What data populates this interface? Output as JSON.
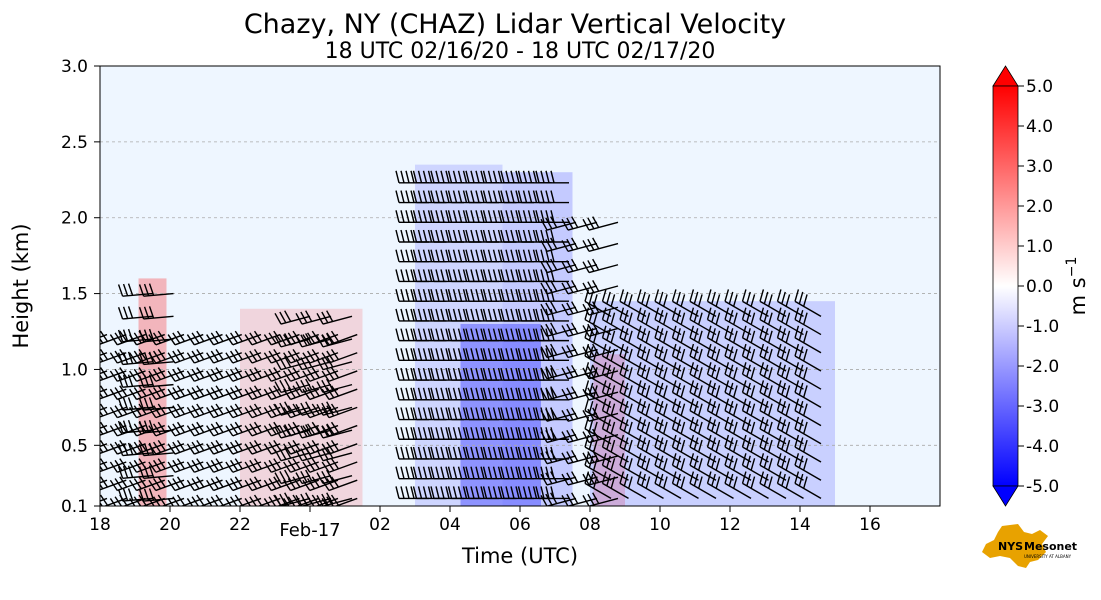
{
  "chart_data": {
    "type": "heatmap",
    "title": "Chazy, NY (CHAZ) Lidar Vertical Velocity",
    "subtitle": "18 UTC 02/16/20 - 18 UTC 02/17/20",
    "xlabel": "Time (UTC)",
    "ylabel": "Height (km)",
    "x_tick_labels": [
      "18",
      "20",
      "22",
      "Feb-17",
      "02",
      "04",
      "06",
      "08",
      "10",
      "12",
      "14",
      "16"
    ],
    "xlim_hours_utc_from_18z": [
      0,
      24
    ],
    "y_ticks": [
      0.1,
      0.5,
      1.0,
      1.5,
      2.0,
      2.5,
      3.0
    ],
    "y_tick_labels": [
      "0.1",
      "0.5",
      "1.0",
      "1.5",
      "2.0",
      "2.5",
      "3.0"
    ],
    "ylim": [
      0.1,
      3.0
    ],
    "grid": "horizontal dashed",
    "background_color": "#eef6ff",
    "colorbar": {
      "label": "m s",
      "label_superscript": "−1",
      "range": [
        -5.0,
        5.0
      ],
      "tick_labels": [
        "5.0",
        "4.0",
        "3.0",
        "2.0",
        "1.0",
        "0.0",
        "-1.0",
        "-2.0",
        "-3.0",
        "-4.0",
        "-5.0"
      ],
      "tick_values": [
        5,
        4,
        3,
        2,
        1,
        0,
        -1,
        -2,
        -3,
        -4,
        -5
      ],
      "colors": {
        "positive": "#ff0000",
        "zero": "#ffffff",
        "negative": "#0000ff"
      },
      "extend": "both"
    },
    "velocity_regions": [
      {
        "t0": 1.1,
        "t1": 1.9,
        "h0": 0.1,
        "h1": 1.6,
        "w": 0.6
      },
      {
        "t0": 4.0,
        "t1": 7.5,
        "h0": 0.1,
        "h1": 1.4,
        "w": 0.3
      },
      {
        "t0": 9.0,
        "t1": 11.5,
        "h0": 0.1,
        "h1": 2.35,
        "w": -0.3
      },
      {
        "t0": 10.3,
        "t1": 12.6,
        "h0": 0.1,
        "h1": 1.3,
        "w": -0.7
      },
      {
        "t0": 11.5,
        "t1": 13.5,
        "h0": 0.1,
        "h1": 2.3,
        "w": -0.4
      },
      {
        "t0": 14.1,
        "t1": 15.0,
        "h0": 0.1,
        "h1": 1.1,
        "w": 0.4
      },
      {
        "t0": 14.0,
        "t1": 21.0,
        "h0": 0.1,
        "h1": 1.45,
        "w": -0.35
      }
    ],
    "wind_barbs": [
      {
        "t0": 0.2,
        "t1": 7.8,
        "dt": 0.55,
        "hmax": 1.25,
        "dh": 0.12,
        "dir": 250,
        "flags": 3
      },
      {
        "t0": 1.5,
        "t1": 2.5,
        "dt": 0.6,
        "hmax": 1.6,
        "dh": 0.15,
        "dir": 265,
        "flags": 3
      },
      {
        "t0": 6.0,
        "t1": 7.5,
        "dt": 0.6,
        "hmax": 1.45,
        "dh": 0.15,
        "dir": 255,
        "flags": 3
      },
      {
        "t0": 9.4,
        "t1": 13.4,
        "dt": 0.5,
        "hmax": 2.35,
        "dh": 0.13,
        "dir": 270,
        "flags": 4
      },
      {
        "t0": 13.6,
        "t1": 15.0,
        "dt": 0.6,
        "hmax": 2.1,
        "dh": 0.14,
        "dir": 255,
        "flags": 3
      },
      {
        "t0": 14.6,
        "t1": 21.0,
        "dt": 0.5,
        "hmax": 1.35,
        "dh": 0.12,
        "dir": 300,
        "flags": 3
      }
    ]
  },
  "logo": {
    "text_nys": "NYS",
    "text_mesonet": "Mesonet",
    "text_sub": "UNIVERSITY AT ALBANY",
    "color_state": "#e8a200",
    "color_text": "#4b2e83"
  }
}
